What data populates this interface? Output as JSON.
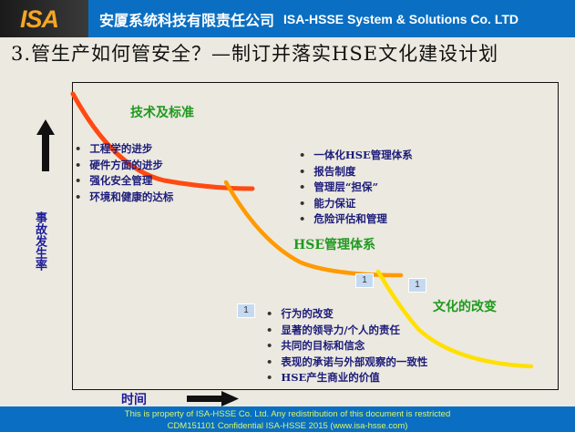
{
  "header": {
    "logo": "ISA",
    "company_cn": "安厦系统科技有限责任公司",
    "company_en": "ISA-HSSE  System & Solutions Co. LTD"
  },
  "title": "3.管生产如何管安全？—制订并落实HSE文化建设计划",
  "y_axis_label": "事故发生率",
  "x_axis_label": "时间",
  "stages": [
    {
      "label": "技术及标准",
      "color": "#ff4a12",
      "items": [
        "工程学的进步",
        "硬件方面的进步",
        "强化安全管理",
        "环境和健康的达标"
      ]
    },
    {
      "label": "HSE管理体系",
      "color": "#ff9a00",
      "items": [
        "一体化HSE管理体系",
        "报告制度",
        "管理层“担保”",
        "能力保证",
        "危险评估和管理"
      ]
    },
    {
      "label": "文化的改变",
      "color": "#ffe000",
      "items": [
        "行为的改变",
        "显著的领导力/个人的责任",
        "共同的目标和信念",
        "表现的承诺与外部观察的一致性",
        "HSE产生商业的价值"
      ]
    }
  ],
  "markers": [
    "1",
    "1",
    "1"
  ],
  "footer": {
    "line1": "This is property of ISA-HSSE Co. Ltd. Any redistribution of this document is restricted",
    "line2": "CDM151101 Confidential   ISA-HSSE 2015  (www.isa-hsse.com)"
  }
}
